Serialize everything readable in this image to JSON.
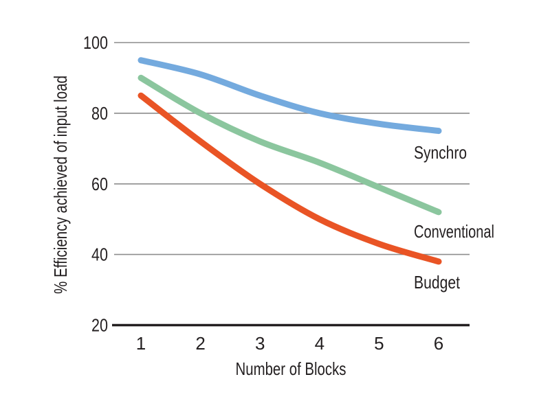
{
  "chart_data": {
    "type": "line",
    "title": "",
    "xlabel": "Number of Blocks",
    "ylabel": "% Efficiency achieved of input load",
    "x": [
      1,
      2,
      3,
      4,
      5,
      6
    ],
    "xtick_labels": [
      "1",
      "2",
      "3",
      "4",
      "5",
      "6"
    ],
    "yticks": [
      20,
      40,
      60,
      80,
      100
    ],
    "ylim": [
      20,
      100
    ],
    "grid": "horizontal",
    "legend_position": "inline labels right of line ends",
    "series": [
      {
        "name": "Synchro",
        "color": "#74aade",
        "values": [
          95,
          91,
          85,
          80,
          77,
          75
        ]
      },
      {
        "name": "Conventional",
        "color": "#8bc69e",
        "values": [
          90,
          80,
          72,
          66,
          59,
          52
        ]
      },
      {
        "name": "Budget",
        "color": "#e95425",
        "values": [
          85,
          72,
          60,
          50,
          43,
          38
        ]
      }
    ]
  },
  "colors": {
    "text": "#231f20",
    "gridline": "#8c8c8c",
    "axis": "#231f20",
    "background": "#ffffff"
  }
}
